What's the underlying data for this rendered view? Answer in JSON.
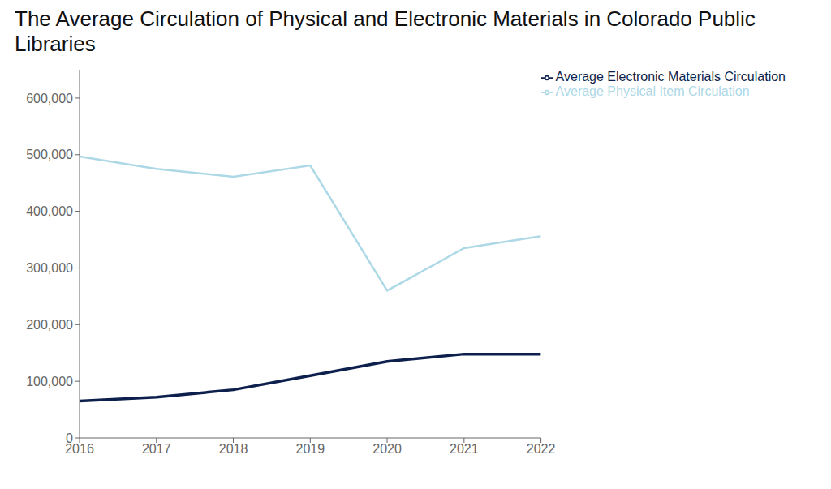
{
  "chart_data": {
    "type": "line",
    "title": "The Average Circulation of Physical and Electronic Materials in Colorado Public Libraries",
    "x": [
      2016,
      2017,
      2018,
      2019,
      2020,
      2021,
      2022
    ],
    "series": [
      {
        "name": "Average Physical Item Circulation",
        "color": "#add8e6",
        "values": [
          497000,
          475000,
          461000,
          481000,
          260000,
          335000,
          356000
        ]
      },
      {
        "name": "Average Electronic Materials Circulation",
        "color": "#0d1f4c",
        "values": [
          65000,
          72000,
          85000,
          110000,
          135000,
          148000,
          148000
        ]
      }
    ],
    "xlim": [
      2016,
      2022
    ],
    "xticks": [
      2016,
      2017,
      2018,
      2019,
      2020,
      2021,
      2022
    ],
    "ylim": [
      0,
      650000
    ],
    "yticks": [
      0,
      {
        "value": 100000,
        "label": "100,000"
      },
      {
        "value": 200000,
        "label": "200,000"
      },
      {
        "value": 300000,
        "label": "300,000"
      },
      {
        "value": 400000,
        "label": "400,000"
      },
      {
        "value": 500000,
        "label": "500,000"
      },
      {
        "value": 600000,
        "label": "600,000"
      }
    ],
    "grid": false,
    "legend": "upper right"
  }
}
